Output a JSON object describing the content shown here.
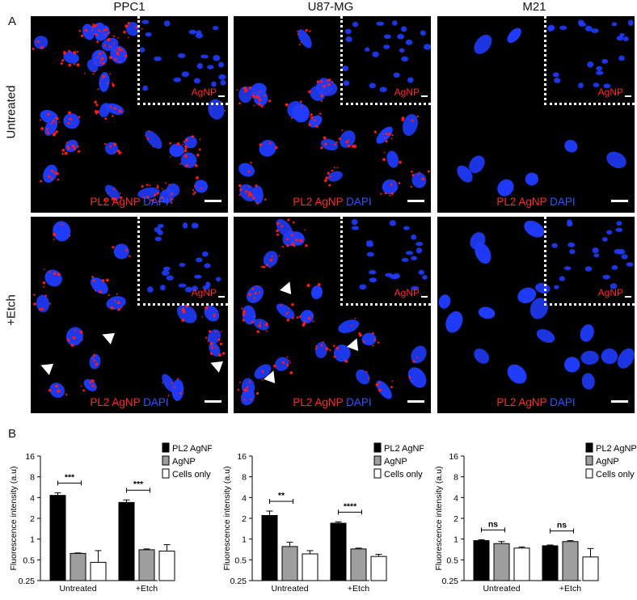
{
  "panel_a": {
    "letter": "A",
    "columns": [
      "PPC1",
      "U87-MG",
      "M21"
    ],
    "rows": [
      "Untreated",
      "+Etch"
    ],
    "inset_label": "AgNP",
    "stain_red": "PL2 AgNP",
    "stain_blue": "DAPI",
    "colors": {
      "nuclei": "#1f3cff",
      "particles": "#ff1a1a",
      "background": "#000000"
    }
  },
  "panel_b": {
    "letter": "B",
    "legend": [
      "PL2 AgNP",
      "AgNP",
      "Cells only"
    ]
  },
  "chart_data": [
    {
      "type": "bar",
      "cell_line": "PPC1",
      "ylabel": "Fluorescence intensity (a.u)",
      "yscale": "log2",
      "yticks": [
        "0.25",
        "0.5",
        "1",
        "2",
        "4",
        "8",
        "16"
      ],
      "ylim": [
        0.25,
        16
      ],
      "categories": [
        "Untreated",
        "+Etch"
      ],
      "legend_position": "top-right",
      "series": [
        {
          "name": "PL2 AgNP",
          "color": "#000000",
          "values": [
            4.3,
            3.4
          ],
          "errors": [
            0.4,
            0.3
          ]
        },
        {
          "name": "AgNP",
          "color": "#9e9e9e",
          "values": [
            0.62,
            0.7
          ],
          "errors": [
            0.01,
            0.02
          ]
        },
        {
          "name": "Cells only",
          "color": "#ffffff",
          "values": [
            0.46,
            0.67
          ],
          "errors": [
            0.22,
            0.16
          ]
        }
      ],
      "significance": [
        "***",
        "***"
      ]
    },
    {
      "type": "bar",
      "cell_line": "U87-MG",
      "ylabel": "Fluorescence intensity (a.u)",
      "yscale": "log2",
      "yticks": [
        "0.25",
        "0.5",
        "1",
        "2",
        "4",
        "8",
        "16"
      ],
      "ylim": [
        0.25,
        16
      ],
      "categories": [
        "Untreated",
        "+Etch"
      ],
      "legend_position": "top-right",
      "series": [
        {
          "name": "PL2 AgNP",
          "color": "#000000",
          "values": [
            2.2,
            1.7
          ],
          "errors": [
            0.35,
            0.08
          ]
        },
        {
          "name": "AgNP",
          "color": "#9e9e9e",
          "values": [
            0.78,
            0.72
          ],
          "errors": [
            0.12,
            0.02
          ]
        },
        {
          "name": "Cells only",
          "color": "#ffffff",
          "values": [
            0.61,
            0.56
          ],
          "errors": [
            0.07,
            0.04
          ]
        }
      ],
      "significance": [
        "**",
        "****"
      ]
    },
    {
      "type": "bar",
      "cell_line": "M21",
      "ylabel": "Fluorescence intensity (a.u)",
      "yscale": "log2",
      "yticks": [
        "0.25",
        "0.5",
        "1",
        "2",
        "4",
        "8",
        "16"
      ],
      "ylim": [
        0.25,
        16
      ],
      "categories": [
        "Untreated",
        "+Etch"
      ],
      "legend_position": "top-right",
      "series": [
        {
          "name": "PL2 AgNP",
          "color": "#000000",
          "values": [
            0.95,
            0.8
          ],
          "errors": [
            0.03,
            0.02
          ]
        },
        {
          "name": "AgNP",
          "color": "#9e9e9e",
          "values": [
            0.86,
            0.92
          ],
          "errors": [
            0.06,
            0.03
          ]
        },
        {
          "name": "Cells only",
          "color": "#ffffff",
          "values": [
            0.74,
            0.55
          ],
          "errors": [
            0.03,
            0.18
          ]
        }
      ],
      "significance": [
        "ns",
        "ns"
      ]
    }
  ]
}
